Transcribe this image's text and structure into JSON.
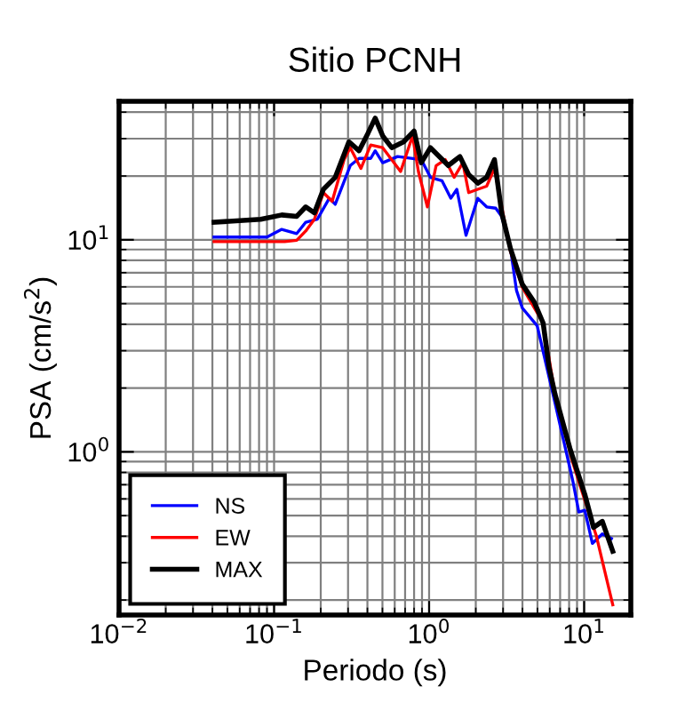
{
  "chart_data": {
    "type": "line",
    "title": "Sitio PCNH",
    "xlabel": "Periodo (s)",
    "ylabel": "PSA (cm/s$^{2}$)",
    "log": "xy",
    "xlim": [
      0.01,
      20
    ],
    "ylim": [
      0.17,
      45
    ],
    "xticks": [
      {
        "value": 0.01,
        "label": "10$^{−2}$"
      },
      {
        "value": 0.1,
        "label": "10$^{−1}$"
      },
      {
        "value": 1,
        "label": "10$^{0}$"
      },
      {
        "value": 10,
        "label": "10$^{1}$"
      }
    ],
    "yticks": [
      {
        "value": 1,
        "label": "10$^{0}$"
      },
      {
        "value": 10,
        "label": "10$^{1}$"
      }
    ],
    "grid": true,
    "legend": "bottom left",
    "marker": "none",
    "line_style": "solid",
    "series": [
      {
        "name": "NS",
        "color": "#0000ff",
        "x": [
          0.041,
          0.09,
          0.112,
          0.14,
          0.16,
          0.19,
          0.227,
          0.248,
          0.31,
          0.353,
          0.42,
          0.449,
          0.502,
          0.626,
          0.89,
          1.02,
          1.21,
          1.38,
          1.51,
          1.73,
          2.06,
          2.35,
          2.69,
          2.94,
          3.35,
          3.66,
          3.99,
          4.98,
          6.49,
          8.45,
          9.24,
          10.1,
          11.3,
          13.1,
          15.0
        ],
        "values": [
          10.3,
          10.3,
          11.2,
          10.7,
          12.1,
          12.5,
          15.7,
          14.7,
          22.4,
          24.2,
          24.2,
          26.3,
          23.1,
          24.7,
          23.9,
          19.7,
          19.0,
          15.7,
          17.3,
          10.5,
          15.7,
          14.3,
          14.1,
          12.9,
          9.08,
          5.78,
          4.77,
          3.93,
          1.7,
          0.73,
          0.52,
          0.53,
          0.37,
          0.41,
          0.39
        ]
      },
      {
        "name": "EW",
        "color": "#ff0000",
        "x": [
          0.041,
          0.117,
          0.14,
          0.16,
          0.182,
          0.208,
          0.237,
          0.283,
          0.31,
          0.363,
          0.42,
          0.502,
          0.655,
          0.782,
          0.853,
          0.975,
          1.11,
          1.27,
          1.45,
          1.65,
          1.8,
          2.06,
          2.35,
          2.64,
          2.94,
          3.35,
          3.99,
          5.44,
          6.49,
          8.45,
          10.1,
          12.0,
          15.3
        ],
        "values": [
          9.8,
          9.8,
          9.95,
          11.0,
          12.5,
          16.7,
          15.2,
          23.9,
          27.2,
          21.7,
          28.0,
          27.2,
          21.0,
          30.9,
          21.0,
          14.3,
          22.4,
          23.9,
          19.7,
          23.1,
          16.7,
          17.3,
          17.9,
          21.7,
          14.3,
          8.8,
          5.97,
          4.05,
          1.87,
          0.89,
          0.59,
          0.4,
          0.19
        ]
      },
      {
        "name": "MAX",
        "color": "#000000",
        "x": [
          0.041,
          0.082,
          0.112,
          0.14,
          0.16,
          0.182,
          0.208,
          0.248,
          0.304,
          0.353,
          0.404,
          0.449,
          0.502,
          0.574,
          0.686,
          0.8,
          0.89,
          1.02,
          1.33,
          1.58,
          1.8,
          2.06,
          2.35,
          2.64,
          2.94,
          3.35,
          3.99,
          4.77,
          5.44,
          5.94,
          6.49,
          8.09,
          10.1,
          11.5,
          13.1,
          15.3
        ],
        "values": [
          12.1,
          12.5,
          13.1,
          12.9,
          14.3,
          13.4,
          17.3,
          19.7,
          29.0,
          26.3,
          31.9,
          37.5,
          30.9,
          27.2,
          29.0,
          32.6,
          23.1,
          27.2,
          22.4,
          24.7,
          20.3,
          18.5,
          19.7,
          23.9,
          13.4,
          9.08,
          6.17,
          5.08,
          4.05,
          2.5,
          1.87,
          1.04,
          0.63,
          0.44,
          0.47,
          0.34
        ]
      }
    ]
  }
}
